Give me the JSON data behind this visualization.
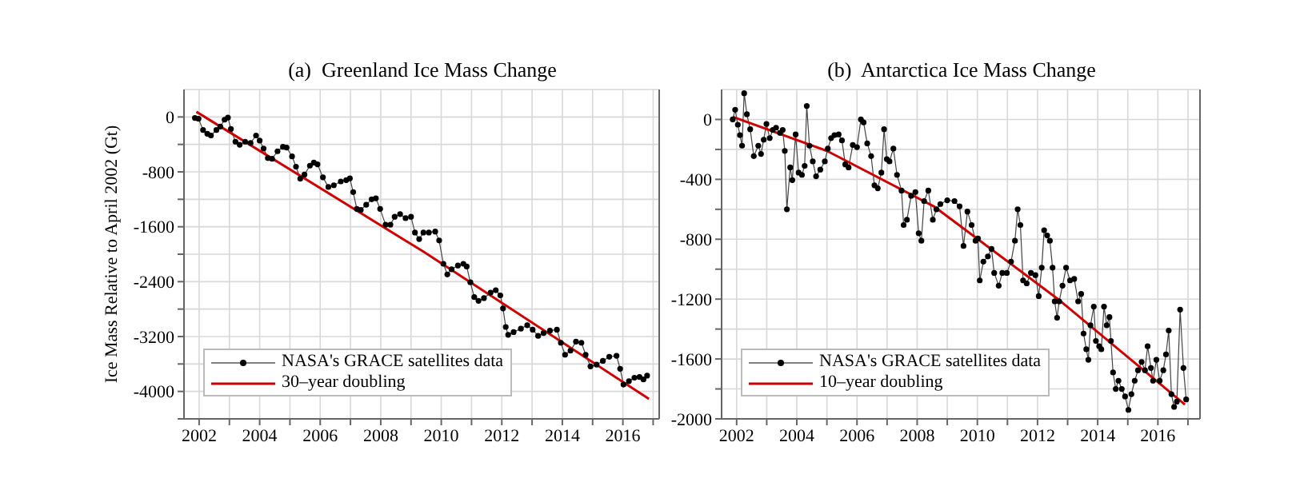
{
  "chart_data": [
    {
      "type": "line",
      "title": "(a)  Greenland Ice Mass Change",
      "ylabel": "Ice Mass Relative to April 2002 (Gt)",
      "xlim": [
        2001.5,
        2017.2
      ],
      "ylim": [
        -4400,
        400
      ],
      "xticks": [
        2002,
        {
          "value": 2003,
          "label": null
        },
        2004,
        {
          "value": 2005,
          "label": null
        },
        2006,
        {
          "value": 2007,
          "label": null
        },
        2008,
        {
          "value": 2009,
          "label": null
        },
        2010,
        {
          "value": 2011,
          "label": null
        },
        2012,
        {
          "value": 2013,
          "label": null
        },
        2014,
        {
          "value": 2015,
          "label": null
        },
        2016,
        {
          "value": 2017,
          "label": null
        }
      ],
      "yticks": [
        {
          "value": -4400,
          "label": null
        },
        -4000,
        {
          "value": -3600,
          "label": null
        },
        -3200,
        {
          "value": -2800,
          "label": null
        },
        -2400,
        {
          "value": -2000,
          "label": null
        },
        -1600,
        {
          "value": -1200,
          "label": null
        },
        -800,
        {
          "value": -400,
          "label": null
        },
        0
      ],
      "grid": true,
      "legend": "bottom left",
      "series": [
        {
          "name": "NASA's GRACE satellites data",
          "color": "#000000",
          "marker": "circle",
          "x": [
            2001.86,
            2001.98,
            2002.13,
            2002.27,
            2002.39,
            2002.57,
            2002.7,
            2002.84,
            2002.95,
            2003.05,
            2003.2,
            2003.34,
            2003.52,
            2003.7,
            2003.88,
            2004.0,
            2004.13,
            2004.27,
            2004.41,
            2004.59,
            2004.77,
            2004.89,
            2005.07,
            2005.2,
            2005.34,
            2005.48,
            2005.66,
            2005.79,
            2005.91,
            2006.09,
            2006.27,
            2006.45,
            2006.68,
            2006.86,
            2006.98,
            2007.09,
            2007.21,
            2007.34,
            2007.52,
            2007.7,
            2007.84,
            2007.98,
            2008.16,
            2008.32,
            2008.46,
            2008.64,
            2008.82,
            2009.0,
            2009.13,
            2009.27,
            2009.41,
            2009.59,
            2009.8,
            2009.93,
            2010.07,
            2010.2,
            2010.34,
            2010.55,
            2010.73,
            2010.84,
            2010.96,
            2011.09,
            2011.23,
            2011.41,
            2011.63,
            2011.8,
            2011.95,
            2012.04,
            2012.13,
            2012.21,
            2012.39,
            2012.63,
            2012.84,
            2013.02,
            2013.2,
            2013.38,
            2013.59,
            2013.82,
            2013.95,
            2014.09,
            2014.27,
            2014.45,
            2014.63,
            2014.77,
            2014.93,
            2015.13,
            2015.34,
            2015.55,
            2015.79,
            2015.91,
            2016.02,
            2016.2,
            2016.38,
            2016.55,
            2016.68,
            2016.8
          ],
          "values": [
            -15,
            -25,
            -190,
            -245,
            -270,
            -190,
            -140,
            -40,
            -10,
            -175,
            -360,
            -405,
            -360,
            -380,
            -270,
            -345,
            -460,
            -600,
            -610,
            -500,
            -435,
            -445,
            -575,
            -725,
            -900,
            -840,
            -710,
            -665,
            -690,
            -880,
            -1020,
            -995,
            -940,
            -920,
            -895,
            -1095,
            -1340,
            -1355,
            -1280,
            -1200,
            -1185,
            -1340,
            -1570,
            -1570,
            -1455,
            -1415,
            -1475,
            -1455,
            -1685,
            -1780,
            -1685,
            -1685,
            -1670,
            -1800,
            -2140,
            -2295,
            -2220,
            -2165,
            -2140,
            -2180,
            -2410,
            -2625,
            -2680,
            -2640,
            -2560,
            -2525,
            -2600,
            -2790,
            -3060,
            -3175,
            -3135,
            -3085,
            -3035,
            -3100,
            -3190,
            -3150,
            -3115,
            -3100,
            -3290,
            -3465,
            -3405,
            -3275,
            -3290,
            -3465,
            -3635,
            -3610,
            -3555,
            -3495,
            -3480,
            -3670,
            -3900,
            -3850,
            -3800,
            -3790,
            -3825,
            -3770
          ]
        },
        {
          "name": "30–year doubling",
          "color": "#cc0000",
          "marker": "none",
          "x": [
            2001.91,
            2009.4,
            2016.86
          ],
          "values": [
            75,
            -1960,
            -4110
          ]
        }
      ]
    },
    {
      "type": "line",
      "title": "(b)  Antarctica Ice Mass Change",
      "xlim": [
        2001.5,
        2017.4
      ],
      "ylim": [
        -2000,
        200
      ],
      "xticks": [
        2002,
        {
          "value": 2003,
          "label": null
        },
        2004,
        {
          "value": 2005,
          "label": null
        },
        2006,
        {
          "value": 2007,
          "label": null
        },
        2008,
        {
          "value": 2009,
          "label": null
        },
        2010,
        {
          "value": 2011,
          "label": null
        },
        2012,
        {
          "value": 2013,
          "label": null
        },
        2014,
        {
          "value": 2015,
          "label": null
        },
        2016,
        {
          "value": 2017,
          "label": null
        }
      ],
      "yticks": [
        -2000,
        {
          "value": -1800,
          "label": null
        },
        -1600,
        {
          "value": -1400,
          "label": null
        },
        -1200,
        {
          "value": -1000,
          "label": null
        },
        -800,
        {
          "value": -600,
          "label": null
        },
        -400,
        {
          "value": -200,
          "label": null
        },
        0
      ],
      "grid": true,
      "legend": "bottom left",
      "series": [
        {
          "name": "NASA's GRACE satellites data",
          "color": "#000000",
          "marker": "circle",
          "x": [
            2001.87,
            2001.95,
            2002.04,
            2002.11,
            2002.18,
            2002.25,
            2002.34,
            2002.45,
            2002.57,
            2002.72,
            2002.81,
            2002.9,
            2002.99,
            2003.1,
            2003.2,
            2003.31,
            2003.44,
            2003.53,
            2003.6,
            2003.67,
            2003.78,
            2003.85,
            2003.96,
            2004.06,
            2004.17,
            2004.26,
            2004.33,
            2004.42,
            2004.53,
            2004.64,
            2004.78,
            2004.93,
            2005.03,
            2005.14,
            2005.25,
            2005.39,
            2005.5,
            2005.61,
            2005.72,
            2005.86,
            2006.0,
            2006.13,
            2006.22,
            2006.34,
            2006.47,
            2006.58,
            2006.69,
            2006.81,
            2006.9,
            2006.99,
            2007.08,
            2007.21,
            2007.33,
            2007.48,
            2007.55,
            2007.66,
            2007.8,
            2007.94,
            2008.05,
            2008.14,
            2008.23,
            2008.37,
            2008.52,
            2008.64,
            2008.77,
            2009.0,
            2009.24,
            2009.41,
            2009.54,
            2009.67,
            2009.81,
            2009.94,
            2010.02,
            2010.08,
            2010.2,
            2010.35,
            2010.47,
            2010.56,
            2010.71,
            2010.83,
            2010.98,
            2011.12,
            2011.25,
            2011.34,
            2011.43,
            2011.52,
            2011.64,
            2011.78,
            2011.93,
            2012.04,
            2012.14,
            2012.22,
            2012.32,
            2012.41,
            2012.5,
            2012.57,
            2012.65,
            2012.72,
            2012.83,
            2012.95,
            2013.08,
            2013.22,
            2013.35,
            2013.45,
            2013.53,
            2013.62,
            2013.69,
            2013.76,
            2013.87,
            2013.94,
            2014.05,
            2014.12,
            2014.21,
            2014.3,
            2014.39,
            2014.44,
            2014.51,
            2014.6,
            2014.69,
            2014.8,
            2014.91,
            2015.02,
            2015.12,
            2015.23,
            2015.34,
            2015.46,
            2015.57,
            2015.66,
            2015.77,
            2015.84,
            2015.95,
            2016.06,
            2016.18,
            2016.27,
            2016.36,
            2016.45,
            2016.54,
            2016.63,
            2016.74,
            2016.85,
            2016.94
          ],
          "values": [
            0,
            65,
            -35,
            -105,
            -175,
            175,
            35,
            -65,
            -245,
            -175,
            -230,
            -135,
            -30,
            -125,
            -70,
            -55,
            -90,
            -70,
            -210,
            -600,
            -320,
            -405,
            -100,
            -355,
            -370,
            -310,
            90,
            -175,
            -280,
            -380,
            -335,
            -280,
            -195,
            -125,
            -105,
            -100,
            -140,
            -300,
            -320,
            -170,
            -185,
            0,
            -20,
            -160,
            -245,
            -440,
            -460,
            -355,
            -65,
            -265,
            -280,
            -195,
            -370,
            -475,
            -705,
            -670,
            -510,
            -485,
            -760,
            -810,
            -545,
            -475,
            -670,
            -600,
            -565,
            -540,
            -545,
            -580,
            -845,
            -615,
            -705,
            -810,
            -795,
            -1075,
            -950,
            -915,
            -865,
            -1025,
            -1110,
            -1025,
            -1025,
            -950,
            -810,
            -600,
            -705,
            -1075,
            -1095,
            -1025,
            -1040,
            -1180,
            -990,
            -740,
            -775,
            -810,
            -990,
            -1215,
            -1325,
            -1215,
            -1110,
            -990,
            -1075,
            -1065,
            -1215,
            -1165,
            -1430,
            -1535,
            -1605,
            -1375,
            -1250,
            -1480,
            -1515,
            -1535,
            -1250,
            -1375,
            -1320,
            -1480,
            -1690,
            -1800,
            -1745,
            -1800,
            -1850,
            -1940,
            -1835,
            -1745,
            -1675,
            -1620,
            -1675,
            -1515,
            -1660,
            -1745,
            -1605,
            -1745,
            -1675,
            -1570,
            -1410,
            -1835,
            -1920,
            -1885,
            -1270,
            -1660,
            -1870
          ]
        },
        {
          "name": "10–year doubling",
          "color": "#cc0000",
          "marker": "none",
          "x": [
            2001.87,
            2005.0,
            2008.55,
            2012.68,
            2016.9
          ],
          "values": [
            18,
            -210,
            -580,
            -1200,
            -1905
          ]
        }
      ]
    }
  ]
}
